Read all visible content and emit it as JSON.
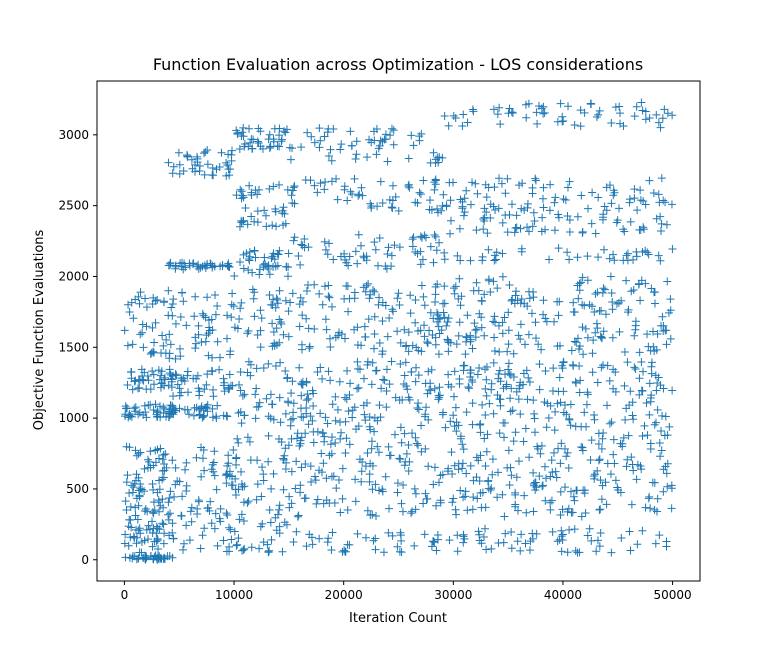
{
  "chart_data": {
    "type": "scatter",
    "title": "Function Evaluation across Optimization - LOS considerations",
    "xlabel": "Iteration Count",
    "ylabel": "Objective Function Evaluations",
    "xlim": [
      -2500,
      52500
    ],
    "ylim": [
      -150,
      3380
    ],
    "xticks": [
      0,
      10000,
      20000,
      30000,
      40000,
      50000
    ],
    "yticks": [
      0,
      500,
      1000,
      1500,
      2000,
      2500,
      3000
    ],
    "grid": false,
    "legend": "none",
    "marker": "+",
    "color": "#1f77b4",
    "series": [
      {
        "segments": [
          {
            "x": [
              0,
              4500
            ],
            "y_bands": [
              [
                0,
                30
              ],
              [
                50,
                250
              ],
              [
                250,
                500
              ],
              [
                500,
                800
              ],
              [
                1000,
                1100
              ],
              [
                1200,
                1350
              ],
              [
                1450,
                1900
              ]
            ]
          },
          {
            "x": [
              4000,
              10000
            ],
            "y_bands": [
              [
                50,
                800
              ],
              [
                1000,
                1100
              ],
              [
                1150,
                1350
              ],
              [
                1400,
                1900
              ],
              [
                2050,
                2100
              ],
              [
                2700,
                2900
              ]
            ]
          },
          {
            "x": [
              10000,
              15000
            ],
            "y_bands": [
              [
                50,
                900
              ],
              [
                950,
                1400
              ],
              [
                1500,
                1950
              ],
              [
                2000,
                2200
              ],
              [
                2350,
                2650
              ],
              [
                2900,
                3050
              ]
            ]
          },
          {
            "x": [
              15000,
              29000
            ],
            "y_bands": [
              [
                50,
                200
              ],
              [
                300,
                1400
              ],
              [
                1450,
                1950
              ],
              [
                2050,
                2300
              ],
              [
                2450,
                2700
              ],
              [
                2800,
                3050
              ]
            ]
          },
          {
            "x": [
              29000,
              50000
            ],
            "y_bands": [
              [
                50,
                220
              ],
              [
                300,
                1400
              ],
              [
                1450,
                2000
              ],
              [
                2100,
                2200
              ],
              [
                2300,
                2700
              ],
              [
                3050,
                3230
              ]
            ]
          }
        ]
      }
    ]
  }
}
